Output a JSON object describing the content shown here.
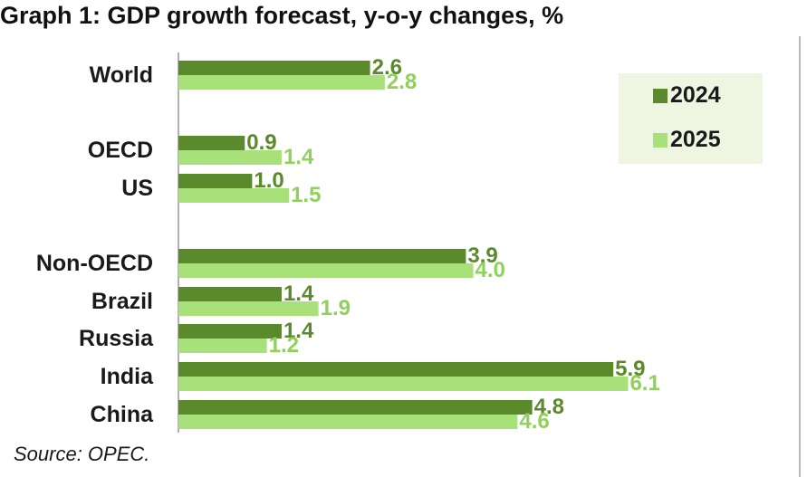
{
  "title": "Graph 1: GDP growth forecast, y-o-y changes, %",
  "source": "Source: OPEC.",
  "colors": {
    "2024": "#5a8a2c",
    "2025": "#a8e07a",
    "label_2024": "#5a8a2c",
    "label_2025": "#8fd15a"
  },
  "legend": [
    {
      "name": "2024"
    },
    {
      "name": "2025"
    }
  ],
  "chart_data": {
    "type": "bar",
    "orientation": "horizontal",
    "title": "Graph 1: GDP growth forecast, y-o-y changes, %",
    "categories": [
      "World",
      "OECD",
      "US",
      "Non-OECD",
      "Brazil",
      "Russia",
      "India",
      "China"
    ],
    "series": [
      {
        "name": "2024",
        "values": [
          2.6,
          0.9,
          1.0,
          3.9,
          1.4,
          1.4,
          5.9,
          4.8
        ]
      },
      {
        "name": "2025",
        "values": [
          2.8,
          1.4,
          1.5,
          4.0,
          1.9,
          1.2,
          6.1,
          4.6
        ]
      }
    ],
    "value_labels": {
      "2024": [
        "2.6",
        "0.9",
        "1.0",
        "3.9",
        "1.4",
        "1.4",
        "5.9",
        "4.8"
      ],
      "2025": [
        "2.8",
        "1.4",
        "1.5",
        "4.0",
        "1.9",
        "1.2",
        "6.1",
        "4.6"
      ]
    },
    "xlim": [
      0,
      6.5
    ],
    "xlabel": "",
    "ylabel": "",
    "grid": false,
    "legend_position": "top-right"
  }
}
